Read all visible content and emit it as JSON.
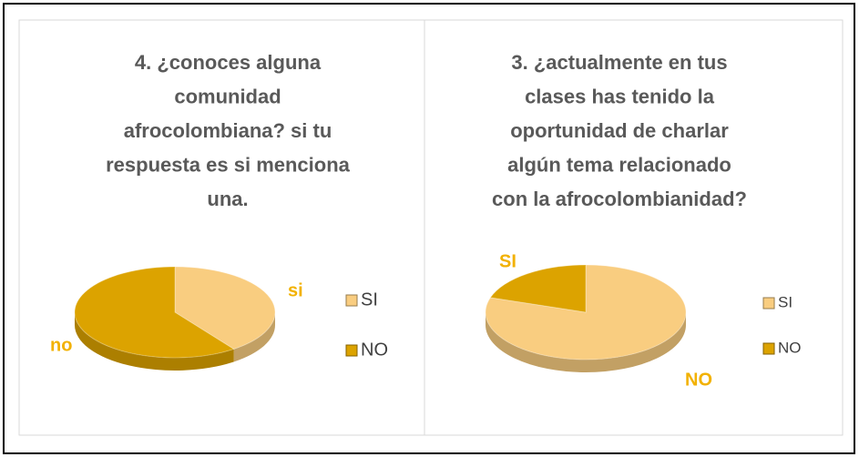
{
  "chart_data": [
    {
      "type": "pie",
      "title": [
        "4. ¿conoces alguna",
        "comunidad",
        "afrocolombiana? si tu",
        "respuesta es si menciona",
        "una."
      ],
      "categories": [
        "SI",
        "NO"
      ],
      "values": [
        40,
        60
      ],
      "data_labels": [
        "si",
        "no"
      ],
      "colors": [
        "#f9cd80",
        "#dca300"
      ],
      "legend": "right"
    },
    {
      "type": "pie",
      "title": [
        "3. ¿actualmente en tus",
        "clases has tenido la",
        "oportunidad de charlar",
        "algún tema relacionado",
        "con la afrocolombianidad?"
      ],
      "categories": [
        "SI",
        "NO"
      ],
      "values": [
        80,
        20
      ],
      "data_labels": [
        "SI",
        "NO"
      ],
      "colors": [
        "#f9cd80",
        "#dca300"
      ],
      "legend": "right"
    }
  ]
}
